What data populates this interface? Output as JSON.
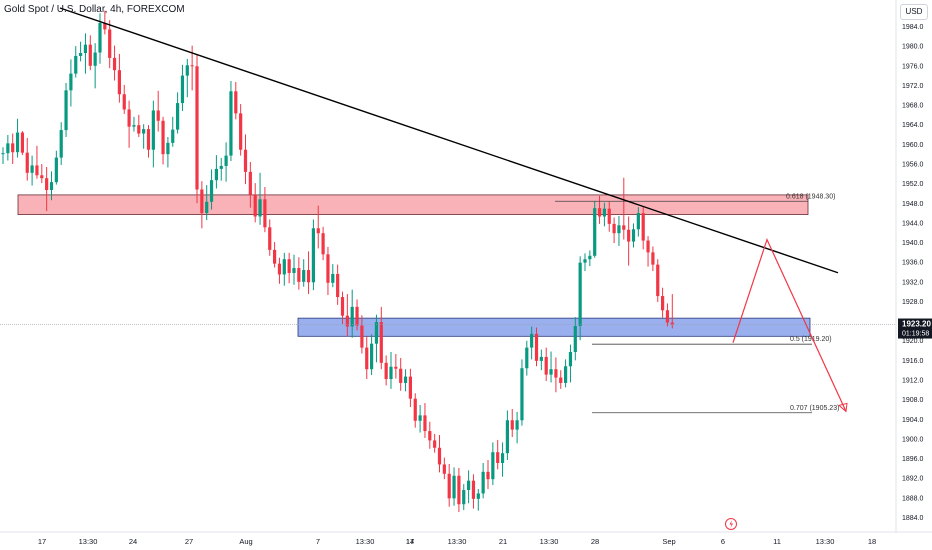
{
  "header": {
    "title": "Gold Spot / U.S. Dollar, 4h, FOREXCOM",
    "currency": "USD"
  },
  "chart_data": {
    "type": "candlestick",
    "title": "Gold Spot / U.S. Dollar, 4h, FOREXCOM",
    "ylim": [
      1881,
      1990
    ],
    "y_ticks": [
      1884,
      1888,
      1892,
      1896,
      1900,
      1904,
      1908,
      1912,
      1916,
      1920,
      1924,
      1928,
      1932,
      1936,
      1940,
      1944,
      1948,
      1952,
      1956,
      1960,
      1964,
      1968,
      1972,
      1976,
      1980,
      1984
    ],
    "x_ticks": [
      "17",
      "13:30",
      "24",
      "27",
      "Aug",
      "7",
      "13:30",
      "14",
      "17",
      "13:30",
      "21",
      "13:30",
      "28",
      "Sep",
      "6",
      "11",
      "13:30",
      "18"
    ],
    "grid": false,
    "current_price": "1923.20",
    "countdown": "01:19:58",
    "colors": {
      "up": "#089981",
      "down": "#f23645",
      "trendline": "#000000",
      "resistance_zone": "#f7a4ab",
      "support_zone": "#8ea6ec",
      "projection": "#f23645"
    },
    "zones": [
      {
        "type": "resistance",
        "from": 1945.6,
        "to": 1949.6
      },
      {
        "type": "support",
        "from": 1920.8,
        "to": 1924.5
      }
    ],
    "fib_levels": [
      {
        "label": "0.618 (1948.30)",
        "value": 1948.3
      },
      {
        "label": "0.5 (1919.20)",
        "value": 1919.2
      },
      {
        "label": "0.707 (1905.23)",
        "value": 1905.23
      }
    ],
    "trendline": {
      "from": {
        "index": 0,
        "price": 1987
      },
      "to": {
        "index": 162,
        "price": 1937
      }
    },
    "projection": [
      {
        "index": 139,
        "price": 1921
      },
      {
        "index": 148,
        "price": 1941
      },
      {
        "index": 162,
        "price": 1905
      }
    ],
    "candles": [
      [
        1958.1,
        1959.3,
        1955.9,
        1958.1
      ],
      [
        1958.1,
        1961.8,
        1956.6,
        1960.1
      ],
      [
        1960.1,
        1962.1,
        1955.9,
        1958.3
      ],
      [
        1958.3,
        1965.1,
        1957.2,
        1962.3
      ],
      [
        1962.3,
        1962.6,
        1957.7,
        1958.2
      ],
      [
        1958.2,
        1961.2,
        1952.5,
        1954.1
      ],
      [
        1954.1,
        1957.6,
        1951.5,
        1955.6
      ],
      [
        1955.6,
        1959.6,
        1952.9,
        1953.6
      ],
      [
        1953.6,
        1955.9,
        1952.0,
        1953.0
      ],
      [
        1953.0,
        1955.3,
        1946.3,
        1950.6
      ],
      [
        1950.6,
        1954.4,
        1948.5,
        1952.2
      ],
      [
        1952.2,
        1958.6,
        1951.7,
        1957.2
      ],
      [
        1957.2,
        1964.4,
        1955.7,
        1962.8
      ],
      [
        1962.8,
        1972.4,
        1961.4,
        1970.9
      ],
      [
        1970.9,
        1977.2,
        1967.6,
        1974.3
      ],
      [
        1974.3,
        1979.9,
        1973.5,
        1977.9
      ],
      [
        1977.9,
        1980.8,
        1976.8,
        1978.5
      ],
      [
        1978.5,
        1982.5,
        1974.3,
        1980.2
      ],
      [
        1980.2,
        1982.1,
        1975.0,
        1975.9
      ],
      [
        1975.9,
        1980.5,
        1971.3,
        1978.6
      ],
      [
        1978.6,
        1986.6,
        1976.3,
        1984.6
      ],
      [
        1984.6,
        1987.1,
        1982.3,
        1983.3
      ],
      [
        1983.3,
        1985.2,
        1975.4,
        1977.5
      ],
      [
        1977.5,
        1980.0,
        1972.9,
        1975.0
      ],
      [
        1975.0,
        1978.3,
        1968.4,
        1970.1
      ],
      [
        1970.1,
        1972.0,
        1966.1,
        1967.0
      ],
      [
        1967.0,
        1968.8,
        1959.2,
        1963.5
      ],
      [
        1963.5,
        1965.5,
        1962.5,
        1963.8
      ],
      [
        1963.8,
        1965.9,
        1961.4,
        1962.1
      ],
      [
        1962.1,
        1964.0,
        1959.0,
        1963.0
      ],
      [
        1963.0,
        1963.8,
        1957.2,
        1958.8
      ],
      [
        1958.8,
        1968.8,
        1955.2,
        1966.8
      ],
      [
        1966.8,
        1970.8,
        1962.5,
        1964.7
      ],
      [
        1964.7,
        1965.5,
        1955.8,
        1957.9
      ],
      [
        1957.9,
        1961.4,
        1955.2,
        1960.2
      ],
      [
        1960.2,
        1965.5,
        1959.4,
        1962.9
      ],
      [
        1962.9,
        1970.5,
        1962.1,
        1968.3
      ],
      [
        1968.3,
        1976.1,
        1966.7,
        1973.9
      ],
      [
        1973.9,
        1977.3,
        1969.5,
        1976.0
      ],
      [
        1976.0,
        1980.0,
        1970.9,
        1975.8
      ],
      [
        1975.8,
        1978.3,
        1947.9,
        1950.7
      ],
      [
        1950.7,
        1952.4,
        1942.8,
        1945.9
      ],
      [
        1945.9,
        1951.6,
        1944.5,
        1948.2
      ],
      [
        1948.2,
        1954.8,
        1946.6,
        1952.6
      ],
      [
        1952.6,
        1957.7,
        1950.9,
        1954.9
      ],
      [
        1954.9,
        1957.1,
        1952.5,
        1955.5
      ],
      [
        1955.5,
        1960.3,
        1952.3,
        1957.6
      ],
      [
        1957.6,
        1972.8,
        1956.5,
        1970.7
      ],
      [
        1970.7,
        1972.6,
        1965.0,
        1966.2
      ],
      [
        1966.2,
        1968.1,
        1957.6,
        1958.8
      ],
      [
        1958.8,
        1961.9,
        1951.8,
        1954.3
      ],
      [
        1954.3,
        1956.3,
        1947.0,
        1949.6
      ],
      [
        1949.6,
        1952.0,
        1944.0,
        1945.2
      ],
      [
        1945.2,
        1954.1,
        1943.5,
        1948.7
      ],
      [
        1948.7,
        1951.2,
        1942.0,
        1943.0
      ],
      [
        1943.0,
        1944.6,
        1937.2,
        1938.4
      ],
      [
        1938.4,
        1940.0,
        1934.8,
        1935.6
      ],
      [
        1935.6,
        1936.8,
        1931.5,
        1933.4
      ],
      [
        1933.4,
        1937.8,
        1931.1,
        1936.5
      ],
      [
        1936.5,
        1937.8,
        1931.6,
        1933.7
      ],
      [
        1933.7,
        1937.4,
        1931.3,
        1934.7
      ],
      [
        1934.7,
        1936.9,
        1930.3,
        1931.9
      ],
      [
        1931.9,
        1936.5,
        1930.9,
        1934.3
      ],
      [
        1934.3,
        1938.1,
        1929.4,
        1931.8
      ],
      [
        1931.8,
        1944.6,
        1930.2,
        1942.8
      ],
      [
        1942.8,
        1947.4,
        1938.7,
        1941.8
      ],
      [
        1941.8,
        1943.1,
        1936.3,
        1937.5
      ],
      [
        1937.5,
        1939.0,
        1929.2,
        1931.7
      ],
      [
        1931.7,
        1935.5,
        1930.8,
        1933.5
      ],
      [
        1933.5,
        1935.4,
        1927.2,
        1928.8
      ],
      [
        1928.8,
        1929.9,
        1923.3,
        1925.0
      ],
      [
        1925.0,
        1929.4,
        1920.8,
        1922.8
      ],
      [
        1922.8,
        1930.3,
        1920.5,
        1926.8
      ],
      [
        1926.8,
        1928.3,
        1922.0,
        1923.0
      ],
      [
        1923.0,
        1925.1,
        1917.3,
        1918.5
      ],
      [
        1918.5,
        1920.7,
        1912.1,
        1914.1
      ],
      [
        1914.1,
        1921.2,
        1912.9,
        1919.3
      ],
      [
        1919.3,
        1925.2,
        1915.5,
        1923.7
      ],
      [
        1923.7,
        1926.8,
        1914.1,
        1915.4
      ],
      [
        1915.4,
        1916.9,
        1910.8,
        1912.1
      ],
      [
        1912.1,
        1917.6,
        1910.1,
        1914.6
      ],
      [
        1914.6,
        1917.2,
        1912.2,
        1914.2
      ],
      [
        1914.2,
        1916.4,
        1909.7,
        1911.3
      ],
      [
        1911.3,
        1914.1,
        1909.6,
        1912.6
      ],
      [
        1912.6,
        1914.2,
        1906.4,
        1908.1
      ],
      [
        1908.1,
        1909.2,
        1902.2,
        1903.6
      ],
      [
        1903.6,
        1906.8,
        1901.2,
        1904.7
      ],
      [
        1904.7,
        1907.2,
        1900.1,
        1901.5
      ],
      [
        1901.5,
        1903.4,
        1897.9,
        1899.6
      ],
      [
        1899.6,
        1900.9,
        1897.1,
        1898.1
      ],
      [
        1898.1,
        1900.7,
        1893.1,
        1894.7
      ],
      [
        1894.7,
        1896.1,
        1891.7,
        1892.8
      ],
      [
        1892.8,
        1894.8,
        1886.1,
        1887.8
      ],
      [
        1887.8,
        1894.1,
        1886.3,
        1892.4
      ],
      [
        1892.4,
        1894.0,
        1885.0,
        1886.6
      ],
      [
        1886.6,
        1890.7,
        1885.4,
        1889.5
      ],
      [
        1889.5,
        1893.5,
        1886.8,
        1891.4
      ],
      [
        1891.4,
        1892.7,
        1885.7,
        1887.7
      ],
      [
        1887.7,
        1889.7,
        1885.3,
        1888.8
      ],
      [
        1888.8,
        1895.0,
        1887.8,
        1893.2
      ],
      [
        1893.2,
        1895.6,
        1889.7,
        1891.7
      ],
      [
        1891.7,
        1899.2,
        1890.5,
        1897.2
      ],
      [
        1897.2,
        1899.7,
        1893.7,
        1895.0
      ],
      [
        1895.0,
        1899.2,
        1892.2,
        1897.0
      ],
      [
        1897.0,
        1905.7,
        1895.6,
        1903.7
      ],
      [
        1903.7,
        1906.0,
        1900.3,
        1901.8
      ],
      [
        1901.8,
        1905.4,
        1899.0,
        1903.7
      ],
      [
        1903.7,
        1916.1,
        1902.6,
        1914.3
      ],
      [
        1914.3,
        1919.9,
        1912.8,
        1918.5
      ],
      [
        1918.5,
        1922.8,
        1916.1,
        1921.3
      ],
      [
        1921.3,
        1922.6,
        1914.7,
        1915.8
      ],
      [
        1915.8,
        1918.1,
        1913.9,
        1916.6
      ],
      [
        1916.6,
        1918.5,
        1911.7,
        1913.0
      ],
      [
        1913.0,
        1917.7,
        1911.4,
        1914.1
      ],
      [
        1914.1,
        1916.5,
        1909.4,
        1912.4
      ],
      [
        1912.4,
        1913.9,
        1910.1,
        1911.3
      ],
      [
        1911.3,
        1916.1,
        1910.4,
        1914.7
      ],
      [
        1914.7,
        1919.1,
        1911.4,
        1917.6
      ],
      [
        1917.6,
        1924.7,
        1915.9,
        1922.9
      ],
      [
        1922.9,
        1937.1,
        1920.0,
        1935.8
      ],
      [
        1935.8,
        1937.7,
        1934.1,
        1936.5
      ],
      [
        1936.5,
        1938.3,
        1935.1,
        1937.2
      ],
      [
        1937.2,
        1948.3,
        1936.8,
        1946.9
      ],
      [
        1946.9,
        1949.4,
        1943.7,
        1945.2
      ],
      [
        1945.2,
        1948.0,
        1943.2,
        1946.8
      ],
      [
        1946.8,
        1948.2,
        1942.1,
        1943.7
      ],
      [
        1943.7,
        1945.0,
        1939.8,
        1941.8
      ],
      [
        1941.8,
        1945.3,
        1939.2,
        1943.4
      ],
      [
        1943.4,
        1953.1,
        1940.5,
        1942.5
      ],
      [
        1942.5,
        1945.2,
        1935.2,
        1940.1
      ],
      [
        1940.1,
        1943.8,
        1938.9,
        1942.6
      ],
      [
        1942.6,
        1947.1,
        1941.1,
        1945.9
      ],
      [
        1945.9,
        1947.1,
        1938.5,
        1940.3
      ],
      [
        1940.3,
        1941.2,
        1935.0,
        1937.9
      ],
      [
        1937.9,
        1939.1,
        1934.1,
        1935.4
      ],
      [
        1935.4,
        1936.5,
        1927.8,
        1929.0
      ],
      [
        1929.0,
        1930.7,
        1924.6,
        1926.1
      ],
      [
        1926.1,
        1927.5,
        1922.8,
        1923.6
      ],
      [
        1923.6,
        1929.4,
        1922.4,
        1923.2
      ]
    ]
  }
}
